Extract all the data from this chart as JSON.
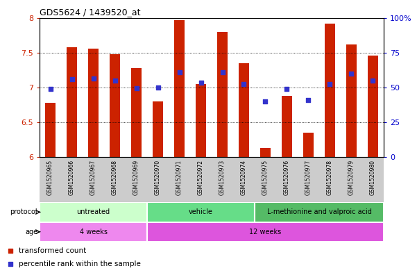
{
  "title": "GDS5624 / 1439520_at",
  "samples": [
    "GSM1520965",
    "GSM1520966",
    "GSM1520967",
    "GSM1520968",
    "GSM1520969",
    "GSM1520970",
    "GSM1520971",
    "GSM1520972",
    "GSM1520973",
    "GSM1520974",
    "GSM1520975",
    "GSM1520976",
    "GSM1520977",
    "GSM1520978",
    "GSM1520979",
    "GSM1520980"
  ],
  "bar_values": [
    6.78,
    7.58,
    7.56,
    7.48,
    7.28,
    6.8,
    7.97,
    7.05,
    7.8,
    7.35,
    6.13,
    6.88,
    6.35,
    7.92,
    7.62,
    7.46
  ],
  "blue_dot_values": [
    6.98,
    7.12,
    7.13,
    7.1,
    6.99,
    7.0,
    7.22,
    7.07,
    7.22,
    7.05,
    6.8,
    6.98,
    6.82,
    7.05,
    7.2,
    7.1
  ],
  "bar_color": "#cc2200",
  "dot_color": "#3333cc",
  "ylim_left": [
    6.0,
    8.0
  ],
  "ylim_right": [
    0,
    100
  ],
  "yticks_left": [
    6.0,
    6.5,
    7.0,
    7.5,
    8.0
  ],
  "yticks_right": [
    0,
    25,
    50,
    75,
    100
  ],
  "ytick_labels_left": [
    "6",
    "6.5",
    "7",
    "7.5",
    "8"
  ],
  "ytick_labels_right": [
    "0",
    "25",
    "50",
    "75",
    "100%"
  ],
  "protocol_groups": [
    {
      "label": "untreated",
      "start": 0,
      "end": 5
    },
    {
      "label": "vehicle",
      "start": 5,
      "end": 10
    },
    {
      "label": "L-methionine and valproic acid",
      "start": 10,
      "end": 16
    }
  ],
  "proto_colors": [
    "#ccffcc",
    "#66dd88",
    "#55bb66"
  ],
  "age_groups": [
    {
      "label": "4 weeks",
      "start": 0,
      "end": 5
    },
    {
      "label": "12 weeks",
      "start": 5,
      "end": 16
    }
  ],
  "age_colors": [
    "#ee88ee",
    "#dd55dd"
  ],
  "protocol_label": "protocol",
  "age_label": "age",
  "legend_items": [
    {
      "color": "#cc2200",
      "label": "transformed count"
    },
    {
      "color": "#3333cc",
      "label": "percentile rank within the sample"
    }
  ],
  "bar_bottom": 6.0,
  "sample_label_bg": "#cccccc",
  "grid_yticks": [
    6.5,
    7.0,
    7.5
  ]
}
